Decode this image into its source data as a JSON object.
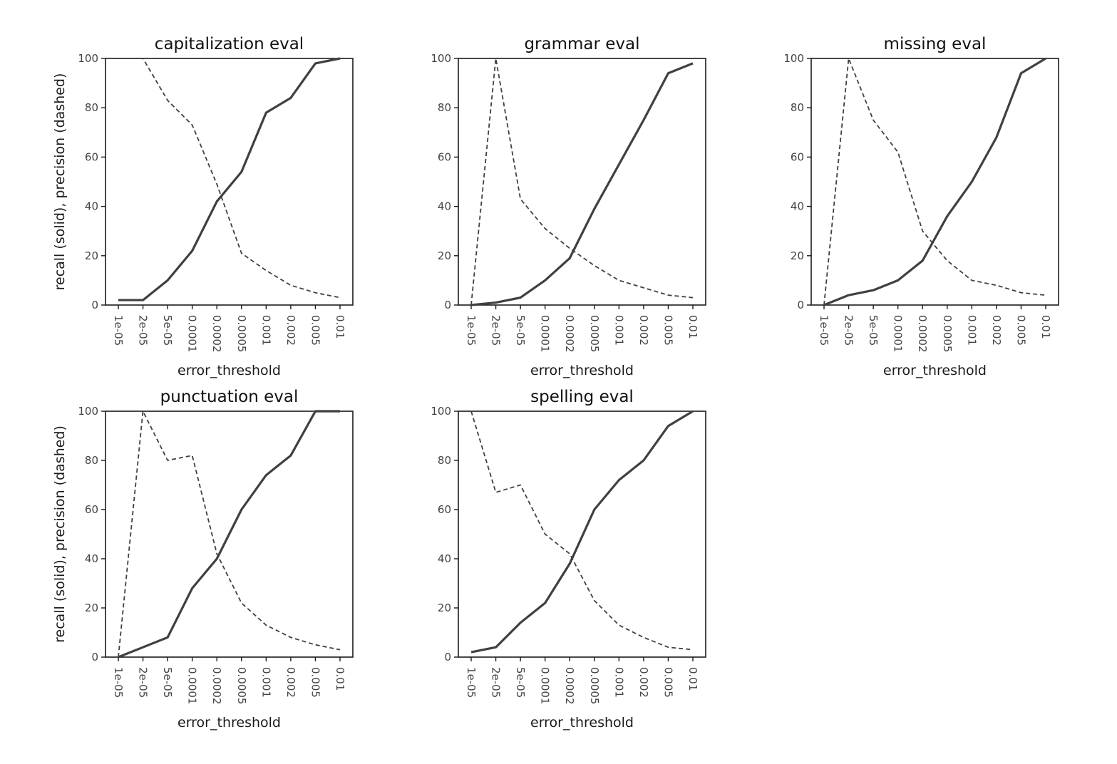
{
  "chart_data": [
    {
      "type": "line",
      "title": "capitalization eval",
      "xlabel": "error_threshold",
      "ylabel": "recall (solid), precision (dashed)",
      "categories": [
        "1e-05",
        "2e-05",
        "5e-05",
        "0.0001",
        "0.0002",
        "0.0005",
        "0.001",
        "0.002",
        "0.005",
        "0.01"
      ],
      "yticks": [
        "0",
        "20",
        "40",
        "60",
        "80",
        "100"
      ],
      "ylim": [
        0,
        100
      ],
      "series": [
        {
          "style": "solid",
          "values": [
            2,
            2,
            10,
            22,
            42,
            54,
            78,
            84,
            98,
            100
          ]
        },
        {
          "style": "dashed",
          "values": [
            100,
            100,
            83,
            73,
            49,
            21,
            14,
            8,
            5,
            3
          ]
        }
      ]
    },
    {
      "type": "line",
      "title": "grammar eval",
      "xlabel": "error_threshold",
      "ylabel": "",
      "categories": [
        "1e-05",
        "2e-05",
        "5e-05",
        "0.0001",
        "0.0002",
        "0.0005",
        "0.001",
        "0.002",
        "0.005",
        "0.01"
      ],
      "yticks": [
        "0",
        "20",
        "40",
        "60",
        "80",
        "100"
      ],
      "ylim": [
        0,
        100
      ],
      "series": [
        {
          "style": "solid",
          "values": [
            0,
            1,
            3,
            10,
            19,
            39,
            57,
            75,
            94,
            98
          ]
        },
        {
          "style": "dashed",
          "values": [
            0,
            100,
            43,
            31,
            23,
            16,
            10,
            7,
            4,
            3
          ]
        }
      ]
    },
    {
      "type": "line",
      "title": "missing eval",
      "xlabel": "error_threshold",
      "ylabel": "",
      "categories": [
        "1e-05",
        "2e-05",
        "5e-05",
        "0.0001",
        "0.0002",
        "0.0005",
        "0.001",
        "0.002",
        "0.005",
        "0.01"
      ],
      "yticks": [
        "0",
        "20",
        "40",
        "60",
        "80",
        "100"
      ],
      "ylim": [
        0,
        100
      ],
      "series": [
        {
          "style": "solid",
          "values": [
            0,
            4,
            6,
            10,
            18,
            36,
            50,
            68,
            94,
            100
          ]
        },
        {
          "style": "dashed",
          "values": [
            0,
            100,
            75,
            62,
            30,
            18,
            10,
            8,
            5,
            4
          ]
        }
      ]
    },
    {
      "type": "line",
      "title": "punctuation eval",
      "xlabel": "error_threshold",
      "ylabel": "recall (solid), precision (dashed)",
      "categories": [
        "1e-05",
        "2e-05",
        "5e-05",
        "0.0001",
        "0.0002",
        "0.0005",
        "0.001",
        "0.002",
        "0.005",
        "0.01"
      ],
      "yticks": [
        "0",
        "20",
        "40",
        "60",
        "80",
        "100"
      ],
      "ylim": [
        0,
        100
      ],
      "series": [
        {
          "style": "solid",
          "values": [
            0,
            4,
            8,
            28,
            40,
            60,
            74,
            82,
            100,
            100
          ]
        },
        {
          "style": "dashed",
          "values": [
            0,
            100,
            80,
            82,
            42,
            22,
            13,
            8,
            5,
            3
          ]
        }
      ]
    },
    {
      "type": "line",
      "title": "spelling eval",
      "xlabel": "error_threshold",
      "ylabel": "",
      "categories": [
        "1e-05",
        "2e-05",
        "5e-05",
        "0.0001",
        "0.0002",
        "0.0005",
        "0.001",
        "0.002",
        "0.005",
        "0.01"
      ],
      "yticks": [
        "0",
        "20",
        "40",
        "60",
        "80",
        "100"
      ],
      "ylim": [
        0,
        100
      ],
      "series": [
        {
          "style": "solid",
          "values": [
            2,
            4,
            14,
            22,
            38,
            60,
            72,
            80,
            94,
            100
          ]
        },
        {
          "style": "dashed",
          "values": [
            100,
            67,
            70,
            50,
            42,
            23,
            13,
            8,
            4,
            3
          ]
        }
      ]
    }
  ],
  "colors": {
    "line": "#404040",
    "axis": "#1a1a1a",
    "tick_label": "#444444"
  }
}
